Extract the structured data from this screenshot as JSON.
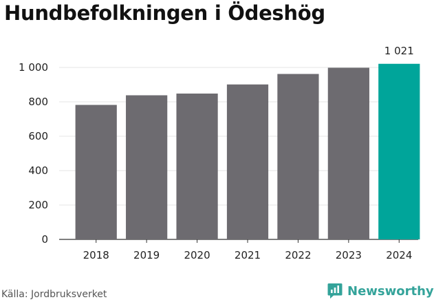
{
  "title": "Hundbefolkningen i Ödeshög",
  "source": "Källa: Jordbruksverket",
  "brand": {
    "name": "Newsworthy",
    "icon": "newsworthy-logo-icon",
    "color": "#34a39a"
  },
  "chart_data": {
    "type": "bar",
    "title": "Hundbefolkningen i Ödeshög",
    "xlabel": "",
    "ylabel": "",
    "categories": [
      "2018",
      "2019",
      "2020",
      "2021",
      "2022",
      "2023",
      "2024"
    ],
    "values": [
      782,
      838,
      848,
      901,
      962,
      998,
      1021
    ],
    "ylim": [
      0,
      1100
    ],
    "yticks": [
      0,
      200,
      400,
      600,
      800,
      1000
    ],
    "ytick_labels": [
      "0",
      "200",
      "400",
      "600",
      "800",
      "1 000"
    ],
    "grid": true,
    "bar_color": "#6d6b70",
    "highlight_color": "#00a59a",
    "highlight_index": 6,
    "data_labels": [
      {
        "index": 6,
        "text": "1 021"
      }
    ]
  }
}
